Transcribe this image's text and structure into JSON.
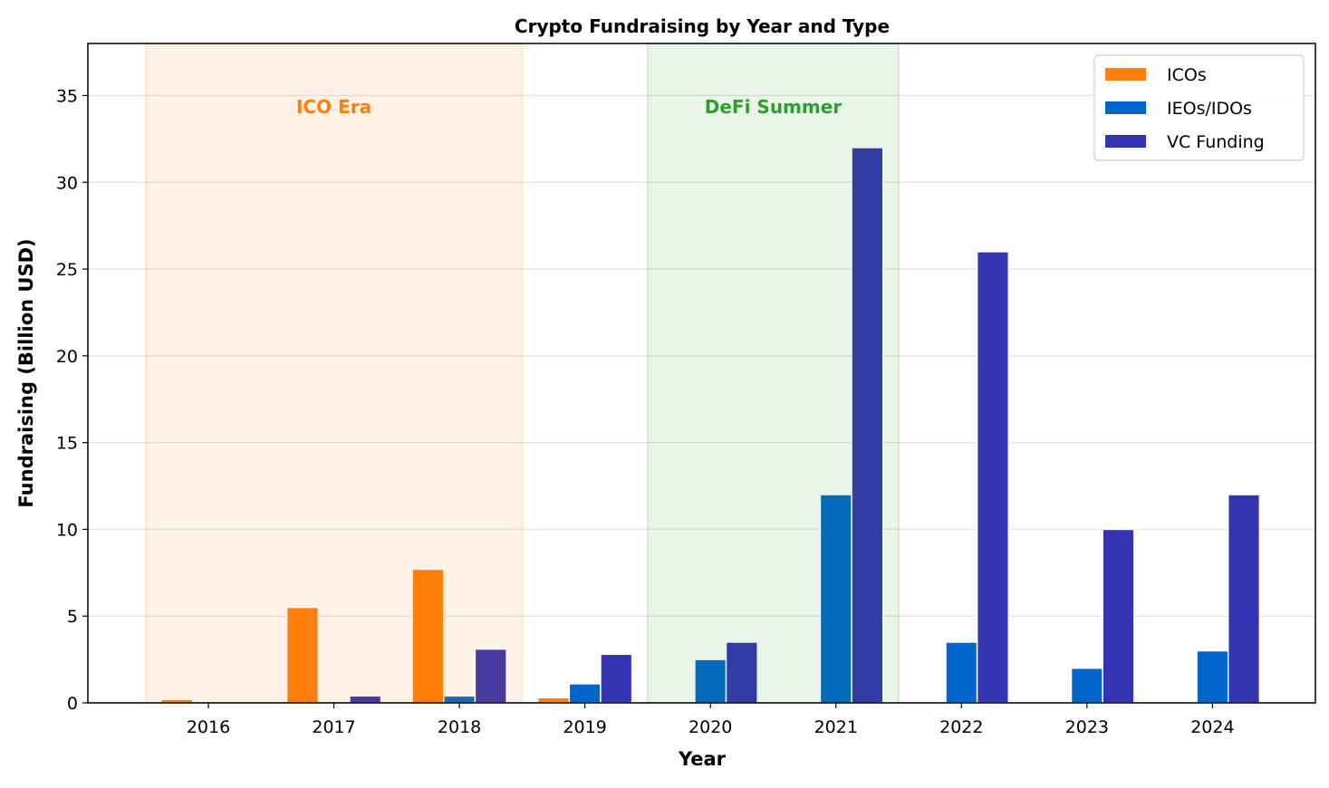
{
  "chart_data": {
    "type": "bar",
    "title": "Crypto Fundraising by Year and Type",
    "xlabel": "Year",
    "ylabel": "Fundraising (Billion USD)",
    "categories": [
      "2016",
      "2017",
      "2018",
      "2019",
      "2020",
      "2021",
      "2022",
      "2023",
      "2024"
    ],
    "series": [
      {
        "name": "ICOs",
        "color": "#ff7f0e",
        "values": [
          0.2,
          5.5,
          7.7,
          0.3,
          0,
          0,
          0,
          0,
          0
        ]
      },
      {
        "name": "IEOs/IDOs",
        "color": "#0066cc",
        "values": [
          0,
          0,
          0.4,
          1.1,
          2.5,
          12,
          3.5,
          2,
          3
        ]
      },
      {
        "name": "VC Funding",
        "color": "#3333b3",
        "values": [
          0,
          0.4,
          3.1,
          2.8,
          3.5,
          32,
          26,
          10,
          12
        ]
      }
    ],
    "ylim": [
      0,
      38
    ],
    "yticks": [
      0,
      5,
      10,
      15,
      20,
      25,
      30,
      35
    ],
    "grid": "horizontal",
    "legend": "top-right",
    "annotations": [
      {
        "label": "ICO Era",
        "from": "2015.5",
        "to": "2018.5",
        "color": "#ff7f0e"
      },
      {
        "label": "DeFi Summer",
        "from": "2019.5",
        "to": "2021.5",
        "color": "#2ca02c"
      }
    ]
  }
}
